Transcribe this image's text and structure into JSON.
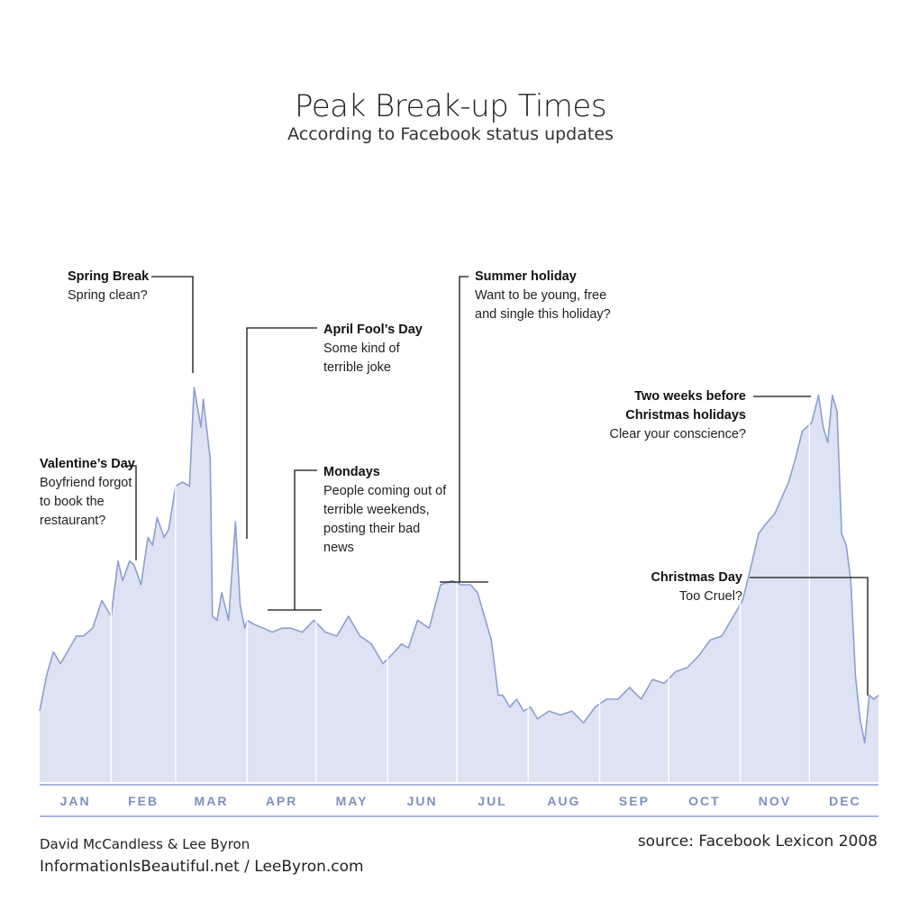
{
  "title": "Peak Break-up Times",
  "subtitle": "According to Facebook status updates",
  "colors": {
    "fill": "#dde3f3",
    "line": "#8c9fd0",
    "month_label": "#7d8fbf",
    "leader": "#111111"
  },
  "annotations": {
    "spring_break": {
      "heading": "Spring Break",
      "lines": [
        "Spring clean?"
      ]
    },
    "april_fools": {
      "heading": "April Fool’s Day",
      "lines": [
        "Some kind of",
        "terrible joke"
      ]
    },
    "summer_holiday": {
      "heading": "Summer holiday",
      "lines": [
        "Want to be young, free",
        "and single this holiday?"
      ]
    },
    "two_weeks": {
      "heading_lines": [
        "Two weeks before",
        "Christmas holidays"
      ],
      "lines": [
        "Clear your conscience?"
      ]
    },
    "valentines": {
      "heading": "Valentine’s Day",
      "lines": [
        "Boyfriend forgot",
        "to book the",
        "restaurant?"
      ]
    },
    "mondays": {
      "heading": "Mondays",
      "lines": [
        "People coming out of",
        "terrible weekends,",
        "posting their bad",
        "news"
      ]
    },
    "christmas": {
      "heading": "Christmas Day",
      "lines": [
        "Too Cruel?"
      ]
    }
  },
  "credits": {
    "line1": "David McCandless & Lee Byron",
    "line2": "InformationIsBeautiful.net / LeeByron.com"
  },
  "source": "source: Facebook Lexicon 2008",
  "chart_data": {
    "type": "area",
    "title": "Peak Break-up Times",
    "subtitle": "According to Facebook status updates",
    "x_unit": "day of year",
    "y_unit": "relative volume of break-up status updates (0-100, unlabeled axis)",
    "x_range": [
      1,
      365
    ],
    "y_range": [
      0,
      100
    ],
    "months": [
      "JAN",
      "FEB",
      "MAR",
      "APR",
      "MAY",
      "JUN",
      "JUL",
      "AUG",
      "SEP",
      "OCT",
      "NOV",
      "DEC"
    ],
    "series": [
      {
        "x": [
          1,
          4,
          7,
          10,
          14,
          17,
          20,
          24,
          28,
          32,
          35,
          37,
          40,
          42,
          45,
          48,
          50,
          52,
          55,
          57,
          60,
          63,
          66,
          68,
          71,
          72,
          75,
          76,
          78,
          80,
          83,
          86,
          88,
          90,
          91,
          94,
          98,
          102,
          106,
          110,
          115,
          120,
          125,
          130,
          135,
          140,
          145,
          150,
          155,
          158,
          161,
          165,
          170,
          175,
          180,
          184,
          188,
          191,
          195,
          197,
          200,
          202,
          205,
          208,
          211,
          214,
          217,
          222,
          227,
          232,
          237,
          242,
          247,
          252,
          257,
          262,
          267,
          272,
          277,
          282,
          287,
          292,
          297,
          302,
          306,
          309,
          313,
          317,
          320,
          323,
          326,
          329,
          332,
          336,
          339,
          341,
          343,
          345,
          347,
          349,
          351,
          353,
          355,
          357,
          359,
          361,
          363,
          365
        ],
        "y": [
          18,
          27,
          33,
          30,
          34,
          37,
          37,
          39,
          46,
          42,
          56,
          51,
          56,
          55,
          50,
          62,
          60,
          67,
          62,
          64,
          75,
          76,
          75,
          100,
          90,
          97,
          82,
          42,
          41,
          48,
          41,
          66,
          45,
          39,
          41,
          40,
          39,
          38,
          39,
          39,
          38,
          41,
          38,
          37,
          42,
          37,
          35,
          30,
          33,
          35,
          34,
          41,
          39,
          50,
          51,
          50,
          50,
          48,
          40,
          36,
          22,
          22,
          19,
          21,
          18,
          19,
          16,
          18,
          17,
          18,
          15,
          19,
          21,
          21,
          24,
          21,
          26,
          25,
          28,
          29,
          32,
          36,
          37,
          42,
          46,
          53,
          63,
          66,
          68,
          72,
          76,
          82,
          89,
          91,
          98,
          90,
          86,
          98,
          94,
          63,
          60,
          51,
          27,
          16,
          10,
          22,
          21,
          22
        ]
      }
    ],
    "annotations": [
      {
        "label": "Spring Break",
        "month": "MAR"
      },
      {
        "label": "April Fool’s Day",
        "month": "APR"
      },
      {
        "label": "Summer holiday",
        "month": "JUL"
      },
      {
        "label": "Two weeks before Christmas holidays",
        "month": "DEC"
      },
      {
        "label": "Valentine’s Day",
        "month": "FEB"
      },
      {
        "label": "Mondays",
        "month": "APR"
      },
      {
        "label": "Christmas Day",
        "month": "DEC"
      }
    ],
    "grid": false,
    "legend": "none"
  }
}
